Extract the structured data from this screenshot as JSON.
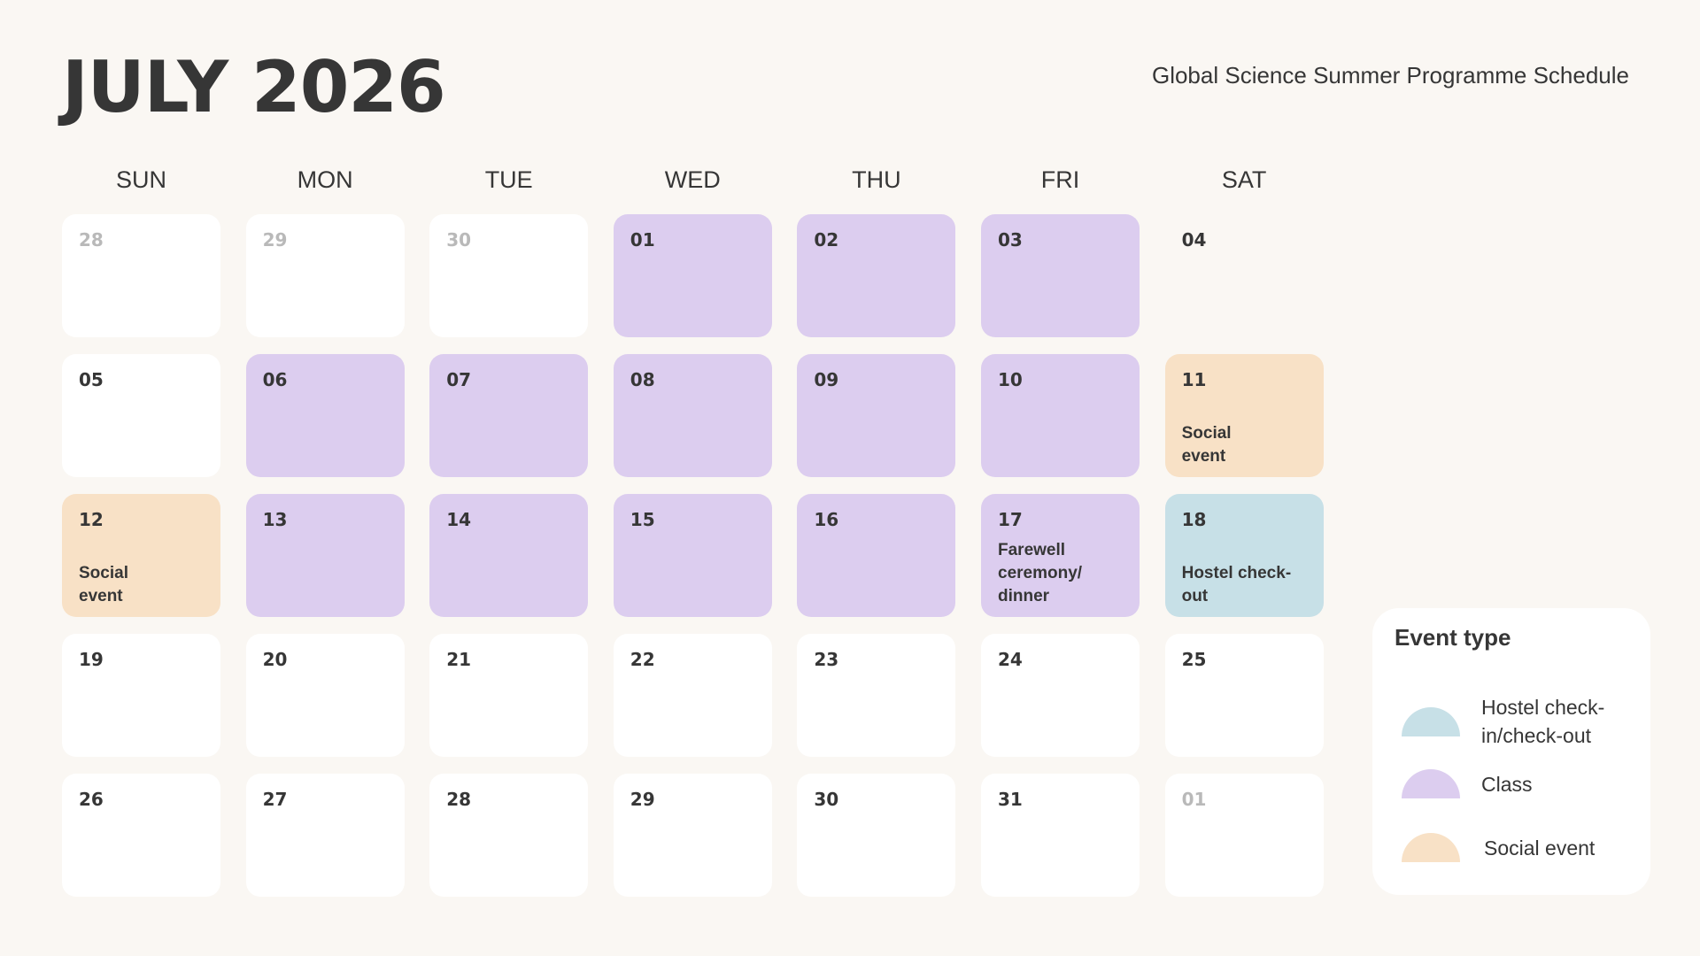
{
  "header": {
    "title": "JULY 2026",
    "subtitle": "Global Science Summer Programme Schedule"
  },
  "weekdays": [
    "SUN",
    "MON",
    "TUE",
    "WED",
    "THU",
    "FRI",
    "SAT"
  ],
  "colors": {
    "class": "#dccdef",
    "social": "#f8e1c6",
    "hostel": "#c7e0e7",
    "background": "#faf7f3"
  },
  "days": [
    {
      "n": "28",
      "type": "plain",
      "muted": true
    },
    {
      "n": "29",
      "type": "plain",
      "muted": true
    },
    {
      "n": "30",
      "type": "plain",
      "muted": true
    },
    {
      "n": "01",
      "type": "class"
    },
    {
      "n": "02",
      "type": "class"
    },
    {
      "n": "03",
      "type": "class"
    },
    {
      "n": "04",
      "type": "none"
    },
    {
      "n": "05",
      "type": "plain"
    },
    {
      "n": "06",
      "type": "class"
    },
    {
      "n": "07",
      "type": "class"
    },
    {
      "n": "08",
      "type": "class"
    },
    {
      "n": "09",
      "type": "class"
    },
    {
      "n": "10",
      "type": "class"
    },
    {
      "n": "11",
      "type": "social",
      "event": "Social event"
    },
    {
      "n": "12",
      "type": "social",
      "event": "Social event"
    },
    {
      "n": "13",
      "type": "class"
    },
    {
      "n": "14",
      "type": "class"
    },
    {
      "n": "15",
      "type": "class"
    },
    {
      "n": "16",
      "type": "class"
    },
    {
      "n": "17",
      "type": "class",
      "event": "Farewell ceremony/ dinner"
    },
    {
      "n": "18",
      "type": "hostel",
      "event": "Hostel check-out"
    },
    {
      "n": "19",
      "type": "plain"
    },
    {
      "n": "20",
      "type": "plain"
    },
    {
      "n": "21",
      "type": "plain"
    },
    {
      "n": "22",
      "type": "plain"
    },
    {
      "n": "23",
      "type": "plain"
    },
    {
      "n": "24",
      "type": "plain"
    },
    {
      "n": "25",
      "type": "plain"
    },
    {
      "n": "26",
      "type": "plain"
    },
    {
      "n": "27",
      "type": "plain"
    },
    {
      "n": "28",
      "type": "plain"
    },
    {
      "n": "29",
      "type": "plain"
    },
    {
      "n": "30",
      "type": "plain"
    },
    {
      "n": "31",
      "type": "plain"
    },
    {
      "n": "01",
      "type": "plain",
      "muted": true
    }
  ],
  "legend": {
    "title": "Event type",
    "items": [
      {
        "label": "Hostel check-in/check-out",
        "type": "hostel"
      },
      {
        "label": "Class",
        "type": "class"
      },
      {
        "label": "Social event",
        "type": "social"
      }
    ]
  }
}
